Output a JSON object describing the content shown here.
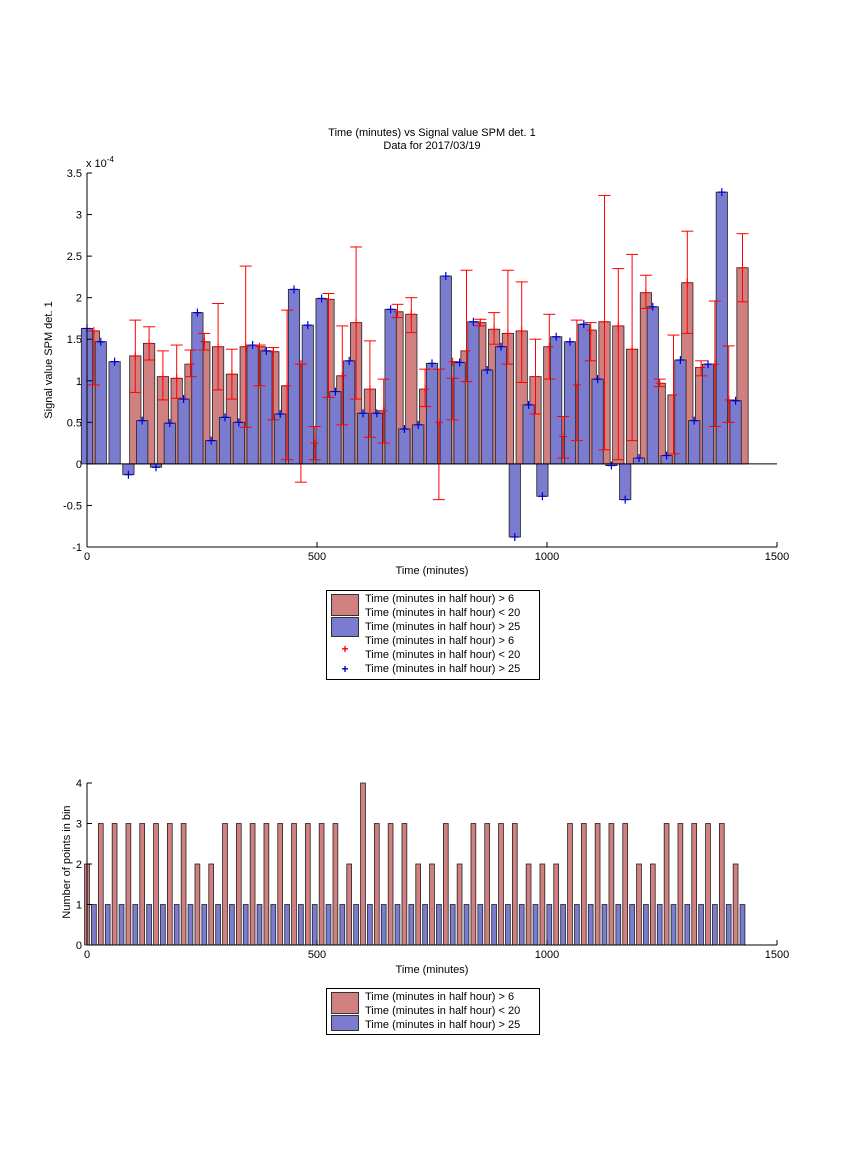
{
  "chart_data": [
    {
      "type": "bar",
      "title": "Time (minutes) vs Signal value SPM det. 1",
      "subtitle": "Data for 2017/03/19",
      "xlabel": "Time (minutes)",
      "ylabel": "Signal value SPM det. 1",
      "y_exponent_label": "x 10",
      "y_exponent_power": "-4",
      "xlim": [
        0,
        1500
      ],
      "ylim": [
        -1,
        3.5
      ],
      "xticks": [
        "0",
        "500",
        "1000",
        "1500"
      ],
      "yticks": [
        "-1",
        "-0.5",
        "0",
        "0.5",
        "1",
        "1.5",
        "2",
        "2.5",
        "3",
        "3.5"
      ],
      "grid": false,
      "legend_placement": "below",
      "series": [
        {
          "name": "Time (minutes in half hour) > 6\nTime (minutes in half hour) < 20",
          "color": "#d08080",
          "x": [
            15,
            105,
            135,
            165,
            195,
            225,
            255,
            285,
            315,
            345,
            375,
            405,
            435,
            465,
            495,
            525,
            555,
            585,
            615,
            645,
            675,
            705,
            735,
            765,
            795,
            825,
            855,
            885,
            915,
            945,
            975,
            1005,
            1035,
            1065,
            1095,
            1125,
            1155,
            1185,
            1215,
            1245,
            1275,
            1305,
            1335,
            1365,
            1395,
            1425
          ],
          "values": [
            1.6,
            1.3,
            1.45,
            1.05,
            1.03,
            1.2,
            1.47,
            1.41,
            1.08,
            1.41,
            1.41,
            1.35,
            0.94,
            1.2,
            0.25,
            1.98,
            1.06,
            1.7,
            0.9,
            0.64,
            1.83,
            1.8,
            0.9,
            0.5,
            1.23,
            1.36,
            1.7,
            1.62,
            1.57,
            1.6,
            1.05,
            1.41,
            0.33,
            0.95,
            1.61,
            1.71,
            1.66,
            1.38,
            2.06,
            0.97,
            0.83,
            2.18,
            1.16,
            1.2,
            0.77,
            2.36
          ],
          "err_low": [
            0.95,
            0.86,
            1.25,
            0.77,
            0.79,
            1.05,
            1.37,
            0.89,
            0.78,
            0.44,
            0.94,
            0.53,
            0.05,
            -0.22,
            0.05,
            0.8,
            0.47,
            0.78,
            0.32,
            0.25,
            1.76,
            1.58,
            0.69,
            -0.43,
            0.53,
            0.99,
            1.66,
            1.44,
            1.2,
            0.98,
            0.6,
            1.02,
            0.07,
            0.28,
            1.24,
            0.17,
            0.05,
            0.28,
            1.87,
            0.93,
            0.12,
            1.57,
            1.06,
            0.45,
            0.5,
            1.95
          ],
          "err_high": [
            1.6,
            1.73,
            1.65,
            1.36,
            1.43,
            1.37,
            1.57,
            1.93,
            1.38,
            2.38,
            1.43,
            1.4,
            1.85,
            1.2,
            0.45,
            2.05,
            1.66,
            2.61,
            1.48,
            1.02,
            1.92,
            2.0,
            1.14,
            1.14,
            1.03,
            2.33,
            1.74,
            1.82,
            2.33,
            2.19,
            1.5,
            1.8,
            0.57,
            1.73,
            1.7,
            3.23,
            2.35,
            2.52,
            2.27,
            1.02,
            1.55,
            2.8,
            1.24,
            1.96,
            1.42,
            2.77
          ]
        },
        {
          "name": "Time (minutes in half hour) > 25",
          "color": "#7b7bd0",
          "x": [
            0,
            30,
            60,
            90,
            120,
            150,
            180,
            210,
            240,
            270,
            300,
            330,
            360,
            390,
            420,
            450,
            480,
            510,
            540,
            570,
            600,
            630,
            660,
            690,
            720,
            750,
            780,
            810,
            840,
            870,
            900,
            930,
            960,
            990,
            1020,
            1050,
            1080,
            1110,
            1140,
            1170,
            1200,
            1230,
            1260,
            1290,
            1320,
            1350,
            1380,
            1410
          ],
          "values": [
            1.63,
            1.47,
            1.23,
            -0.13,
            0.52,
            -0.04,
            0.49,
            0.78,
            1.82,
            0.28,
            0.56,
            0.5,
            1.43,
            1.36,
            0.6,
            2.1,
            1.67,
            1.99,
            0.87,
            1.24,
            0.61,
            0.61,
            1.86,
            0.42,
            0.47,
            1.21,
            2.26,
            1.22,
            1.71,
            1.13,
            1.41,
            -0.88,
            0.71,
            -0.39,
            1.53,
            1.47,
            1.68,
            1.02,
            -0.02,
            -0.43,
            0.07,
            1.89,
            0.1,
            1.25,
            0.52,
            1.2,
            3.27,
            0.76
          ]
        }
      ],
      "legend": [
        {
          "label": "Time (minutes in half hour) > 6",
          "label2": "Time (minutes in half hour) < 20",
          "marker": "bar",
          "color": "#d08080"
        },
        {
          "label": "Time (minutes in half hour) > 25",
          "marker": "bar",
          "color": "#7b7bd0"
        },
        {
          "label": "Time (minutes in half hour) > 6",
          "label2": "Time (minutes in half hour) < 20",
          "marker": "+",
          "color": "#ff0000"
        },
        {
          "label": "Time (minutes in half hour) > 25",
          "marker": "+",
          "color": "#0000cc"
        }
      ]
    },
    {
      "type": "bar",
      "title": "",
      "xlabel": "Time (minutes)",
      "ylabel": "Number of points in bin",
      "xlim": [
        0,
        1500
      ],
      "ylim": [
        0,
        4
      ],
      "xticks": [
        "0",
        "500",
        "1000",
        "1500"
      ],
      "yticks": [
        "0",
        "1",
        "2",
        "3",
        "4"
      ],
      "grid": false,
      "legend_placement": "below",
      "series": [
        {
          "name": "Time (minutes in half hour) > 6\nTime (minutes in half hour) < 20",
          "color": "#d08080",
          "x": [
            0,
            30,
            60,
            90,
            120,
            150,
            180,
            210,
            240,
            270,
            300,
            330,
            360,
            390,
            420,
            450,
            480,
            510,
            540,
            570,
            600,
            630,
            660,
            690,
            720,
            750,
            780,
            810,
            840,
            870,
            900,
            930,
            960,
            990,
            1020,
            1050,
            1080,
            1110,
            1140,
            1170,
            1200,
            1230,
            1260,
            1290,
            1320,
            1350,
            1380,
            1410
          ],
          "values": [
            2,
            3,
            3,
            3,
            3,
            3,
            3,
            3,
            2,
            2,
            3,
            3,
            3,
            3,
            3,
            3,
            3,
            3,
            3,
            2,
            4,
            3,
            3,
            3,
            2,
            2,
            3,
            2,
            3,
            3,
            3,
            3,
            2,
            2,
            2,
            3,
            3,
            3,
            3,
            3,
            2,
            2,
            3,
            3,
            3,
            3,
            3,
            2
          ]
        },
        {
          "name": "Time (minutes in half hour) > 25",
          "color": "#7b7bd0",
          "x": [
            15,
            45,
            75,
            105,
            135,
            165,
            195,
            225,
            255,
            285,
            315,
            345,
            375,
            405,
            435,
            465,
            495,
            525,
            555,
            585,
            615,
            645,
            675,
            705,
            735,
            765,
            795,
            825,
            855,
            885,
            915,
            945,
            975,
            1005,
            1035,
            1065,
            1095,
            1125,
            1155,
            1185,
            1215,
            1245,
            1275,
            1305,
            1335,
            1365,
            1395,
            1425
          ],
          "values": [
            1,
            1,
            1,
            1,
            1,
            1,
            1,
            1,
            1,
            1,
            1,
            1,
            1,
            1,
            1,
            1,
            1,
            1,
            1,
            1,
            1,
            1,
            1,
            1,
            1,
            1,
            1,
            1,
            1,
            1,
            1,
            1,
            1,
            1,
            1,
            1,
            1,
            1,
            1,
            1,
            1,
            1,
            1,
            1,
            1,
            1,
            1,
            1
          ]
        }
      ],
      "legend": [
        {
          "label": "Time (minutes in half hour) > 6",
          "label2": "Time (minutes in half hour) < 20",
          "marker": "bar",
          "color": "#d08080"
        },
        {
          "label": "Time (minutes in half hour) > 25",
          "marker": "bar",
          "color": "#7b7bd0"
        }
      ]
    }
  ]
}
